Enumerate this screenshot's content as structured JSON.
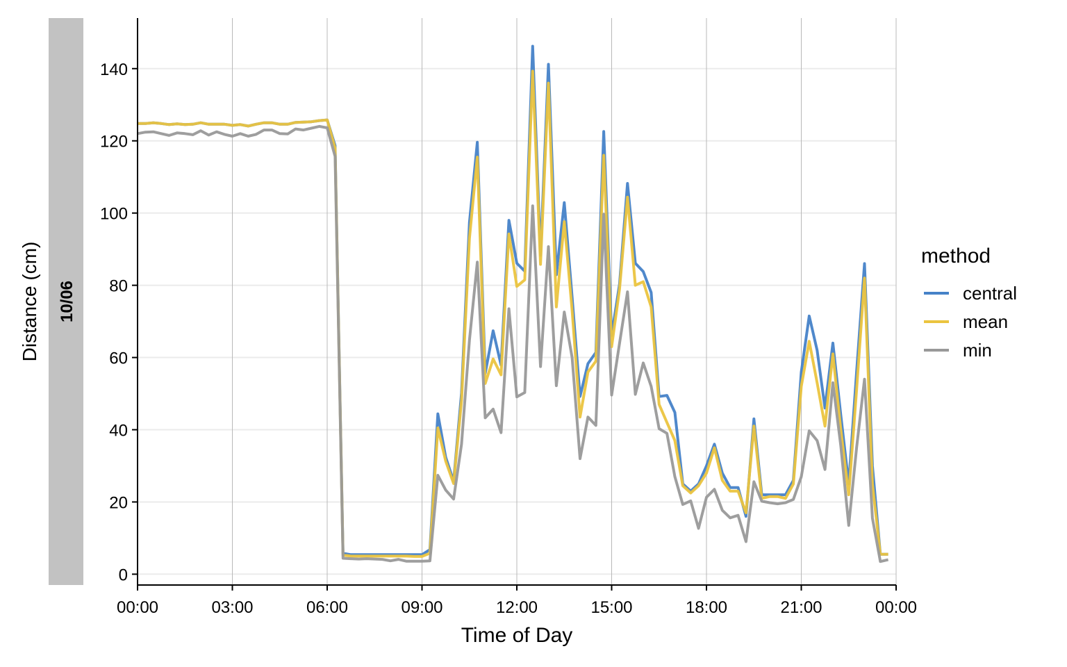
{
  "chart_data": {
    "type": "line",
    "facet_label": "10/06",
    "xlabel": "Time of Day",
    "ylabel": "Distance (cm)",
    "x_ticks": [
      "00:00",
      "03:00",
      "06:00",
      "09:00",
      "12:00",
      "15:00",
      "18:00",
      "21:00",
      "00:00"
    ],
    "x_tick_hours": [
      0,
      3,
      6,
      9,
      12,
      15,
      18,
      21,
      24
    ],
    "xlim_hours": [
      0,
      24
    ],
    "y_ticks": [
      0,
      20,
      40,
      60,
      80,
      100,
      120,
      140
    ],
    "ylim": [
      -3,
      154
    ],
    "grid": true,
    "legend": {
      "title": "method",
      "position": "right"
    },
    "x_hours": [
      0,
      0.25,
      0.5,
      0.75,
      1,
      1.25,
      1.5,
      1.75,
      2,
      2.25,
      2.5,
      2.75,
      3,
      3.25,
      3.5,
      3.75,
      4,
      4.25,
      4.5,
      4.75,
      5,
      5.25,
      5.5,
      5.75,
      6,
      6.25,
      6.5,
      6.75,
      7,
      7.25,
      7.5,
      7.75,
      8,
      8.25,
      8.5,
      8.75,
      9,
      9.25,
      9.5,
      9.75,
      10,
      10.25,
      10.5,
      10.75,
      11,
      11.25,
      11.5,
      11.75,
      12,
      12.25,
      12.5,
      12.75,
      13,
      13.25,
      13.5,
      13.75,
      14,
      14.25,
      14.5,
      14.75,
      15,
      15.25,
      15.5,
      15.75,
      16,
      16.25,
      16.5,
      16.75,
      17,
      17.25,
      17.5,
      17.75,
      18,
      18.25,
      18.5,
      18.75,
      19,
      19.25,
      19.5,
      19.75,
      20,
      20.25,
      20.5,
      20.75,
      21,
      21.25,
      21.5,
      21.75,
      22,
      22.25,
      22.5,
      22.75,
      23,
      23.25,
      23.5,
      23.75
    ],
    "series": [
      {
        "name": "central",
        "color": "#4682C8",
        "values": [
          124.8,
          124.8,
          125.0,
          124.8,
          124.5,
          124.7,
          124.5,
          124.6,
          125.0,
          124.6,
          124.6,
          124.6,
          124.3,
          124.5,
          124.1,
          124.6,
          125.0,
          125.0,
          124.6,
          124.6,
          125.1,
          125.2,
          125.3,
          125.6,
          125.8,
          118.7,
          5.8,
          5.4,
          5.4,
          5.4,
          5.4,
          5.4,
          5.4,
          5.4,
          5.4,
          5.4,
          5.4,
          6.8,
          44.4,
          32.4,
          25.7,
          50.2,
          97.4,
          119.6,
          55.6,
          67.4,
          57.9,
          98.0,
          86.1,
          83.9,
          146.2,
          88.3,
          141.2,
          82.9,
          102.9,
          76.7,
          49.2,
          58.3,
          61.4,
          122.6,
          66.1,
          80.4,
          108.2,
          86.1,
          83.8,
          78.0,
          49.2,
          49.5,
          44.8,
          25.0,
          23.0,
          25.0,
          30.0,
          36.0,
          28.0,
          24.0,
          24.0,
          16.0,
          43.0,
          22.0,
          22.0,
          22.0,
          22.0,
          26.0,
          56.0,
          71.5,
          62.0,
          46.0,
          64.0,
          44.0,
          25.0,
          56.0,
          86.0,
          30.0,
          5.5,
          5.5
        ]
      },
      {
        "name": "mean",
        "color": "#EBC43F",
        "values": [
          124.8,
          124.8,
          125.0,
          124.8,
          124.5,
          124.7,
          124.5,
          124.6,
          125.0,
          124.6,
          124.6,
          124.6,
          124.3,
          124.5,
          124.1,
          124.6,
          125.0,
          125.0,
          124.6,
          124.6,
          125.1,
          125.2,
          125.3,
          125.6,
          125.8,
          118.0,
          5.3,
          5.0,
          5.0,
          5.0,
          5.0,
          5.0,
          5.0,
          5.0,
          5.0,
          4.9,
          4.9,
          5.8,
          40.5,
          31.3,
          25.1,
          48.0,
          93.0,
          115.5,
          52.8,
          59.6,
          55.2,
          94.2,
          79.7,
          81.5,
          139.3,
          85.8,
          136.0,
          74.0,
          97.6,
          73.0,
          43.5,
          56.0,
          59.0,
          116.0,
          63.0,
          79.0,
          104.4,
          80.0,
          81.0,
          74.0,
          47.0,
          42.0,
          37.0,
          24.5,
          22.5,
          24.5,
          28.0,
          35.0,
          26.0,
          23.0,
          23.0,
          17.0,
          41.0,
          21.0,
          21.5,
          21.5,
          21.0,
          25.0,
          52.0,
          64.5,
          53.0,
          41.0,
          61.0,
          40.0,
          22.0,
          51.0,
          82.0,
          25.0,
          5.5,
          5.5
        ]
      },
      {
        "name": "min",
        "color": "#999999",
        "values": [
          122.0,
          122.4,
          122.5,
          122.0,
          121.5,
          122.2,
          122.0,
          121.7,
          122.8,
          121.6,
          122.5,
          121.8,
          121.3,
          122.0,
          121.3,
          121.8,
          123.0,
          123.0,
          122.0,
          121.9,
          123.3,
          123.0,
          123.5,
          124.0,
          123.6,
          115.7,
          4.4,
          4.3,
          4.2,
          4.3,
          4.2,
          4.1,
          3.7,
          4.1,
          3.6,
          3.6,
          3.6,
          3.7,
          27.4,
          23.3,
          20.8,
          36.0,
          64.8,
          86.4,
          43.3,
          45.7,
          39.2,
          73.5,
          49.1,
          50.3,
          102.0,
          57.5,
          90.7,
          52.2,
          72.6,
          60.0,
          32.0,
          43.5,
          41.2,
          99.7,
          49.6,
          64.0,
          78.2,
          49.8,
          58.5,
          52.0,
          40.3,
          39.0,
          27.0,
          19.3,
          20.3,
          12.7,
          21.3,
          23.5,
          17.7,
          15.6,
          16.3,
          9.0,
          25.6,
          20.2,
          19.8,
          19.5,
          19.8,
          20.7,
          27.0,
          39.7,
          37.0,
          29.0,
          53.0,
          35.5,
          13.5,
          35.0,
          54.0,
          15.5,
          3.5,
          4.0
        ]
      }
    ]
  }
}
